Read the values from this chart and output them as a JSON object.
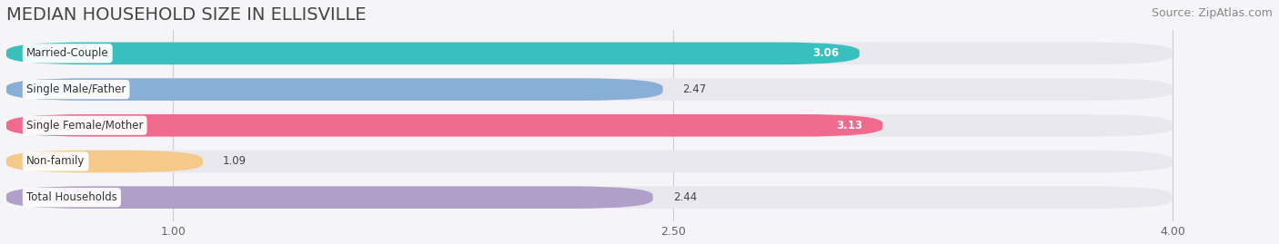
{
  "title": "MEDIAN HOUSEHOLD SIZE IN ELLISVILLE",
  "source": "Source: ZipAtlas.com",
  "categories": [
    "Married-Couple",
    "Single Male/Father",
    "Single Female/Mother",
    "Non-family",
    "Total Households"
  ],
  "values": [
    3.06,
    2.47,
    3.13,
    1.09,
    2.44
  ],
  "bar_colors": [
    "#3abfbf",
    "#8aafd6",
    "#f06a8e",
    "#f5c98a",
    "#b09fc9"
  ],
  "track_color": "#e8e8ee",
  "xmin": 0.5,
  "xmax": 4.0,
  "xlim_left": 0.5,
  "xlim_right": 4.3,
  "xticks": [
    1.0,
    2.5,
    4.0
  ],
  "title_fontsize": 14,
  "source_fontsize": 9,
  "bar_height": 0.62,
  "value_label_inside": [
    true,
    false,
    true,
    false,
    false
  ],
  "background_color": "#f5f5f7"
}
